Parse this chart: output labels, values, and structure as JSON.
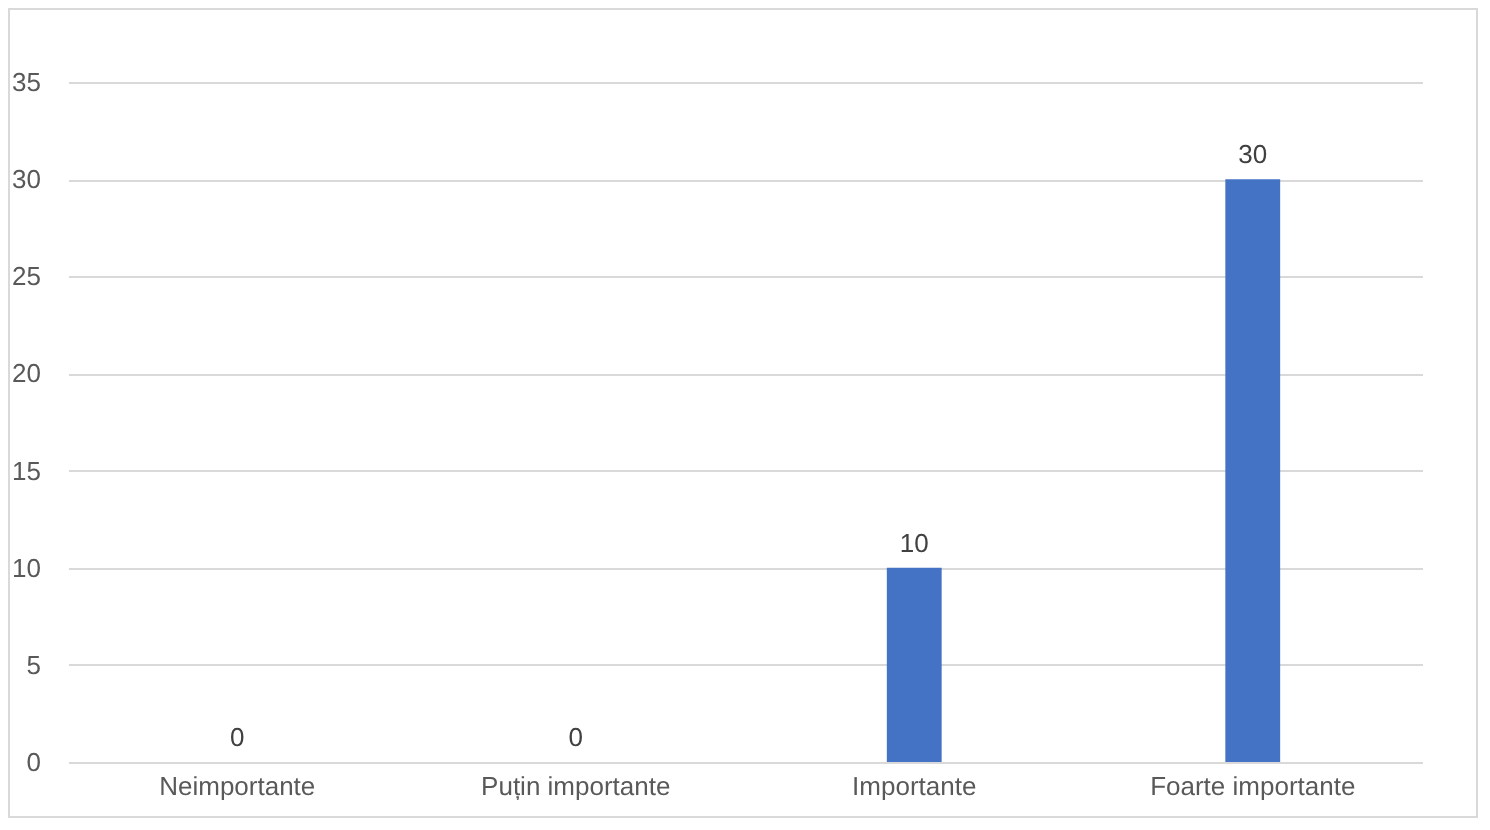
{
  "chart_data": {
    "type": "bar",
    "categories": [
      "Neimportante",
      "Puțin importante",
      "Importante",
      "Foarte importante"
    ],
    "values": [
      0,
      0,
      10,
      30
    ],
    "color": "#4472c4",
    "ylim": [
      0,
      35
    ],
    "yticks": [
      0,
      5,
      10,
      15,
      20,
      25,
      30,
      35
    ],
    "grid": "y",
    "data_labels": true
  }
}
